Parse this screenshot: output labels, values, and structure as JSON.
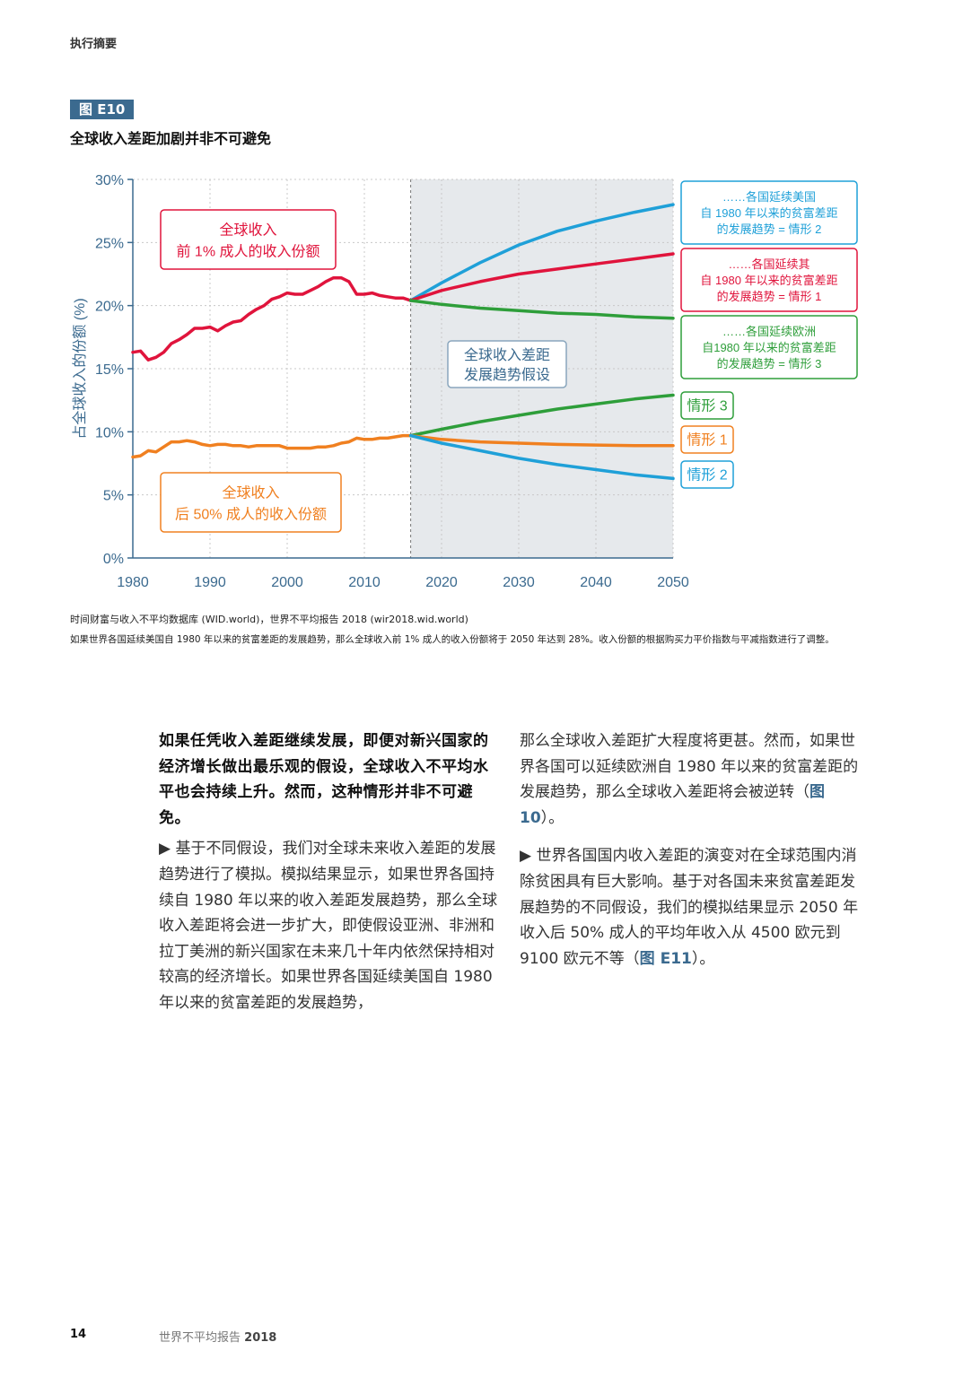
{
  "header": {
    "section": "执行摘要"
  },
  "figure": {
    "tag": "图 E10",
    "title": "全球收入差距加剧并非不可避免",
    "source": "时间财富与收入不平均数据库 (WID.world)，世界不平均报告 2018 (wir2018.wid.world)",
    "note": "如果世界各国延续美国自 1980 年以来的贫富差距的发展趋势，那么全球收入前 1% 成人的收入份额将于 2050 年达到 28%。收入份额的根据购买力平价指数与平减指数进行了调整。"
  },
  "chart_data": {
    "type": "line",
    "ylabel": "占全球收入的份额 (%)",
    "xlim": [
      1980,
      2050
    ],
    "ylim": [
      0,
      30
    ],
    "x_ticks": [
      "1980",
      "1990",
      "2000",
      "2010",
      "2020",
      "2030",
      "2040",
      "2050"
    ],
    "y_ticks": [
      "0%",
      "5%",
      "10%",
      "15%",
      "20%",
      "25%",
      "30%"
    ],
    "projection_start": 2016,
    "projection_label": [
      "全球收入差距",
      "发展趋势假设"
    ],
    "colors": {
      "top1": "#e0143c",
      "bottom50": "#f08020",
      "s1": "#e0143c",
      "s2": "#1fa0d8",
      "s3": "#2e9e3a",
      "s1_bottom": "#f08020"
    },
    "series": [
      {
        "name": "全球收入前 1% 成人的收入份额（历史）",
        "key": "top1",
        "x": [
          1980,
          1981,
          1982,
          1983,
          1984,
          1985,
          1986,
          1987,
          1988,
          1989,
          1990,
          1991,
          1992,
          1993,
          1994,
          1995,
          1996,
          1997,
          1998,
          1999,
          2000,
          2001,
          2002,
          2003,
          2004,
          2005,
          2006,
          2007,
          2008,
          2009,
          2010,
          2011,
          2012,
          2013,
          2014,
          2015,
          2016
        ],
        "values": [
          16.3,
          16.4,
          15.7,
          15.9,
          16.3,
          17.0,
          17.3,
          17.7,
          18.2,
          18.2,
          18.3,
          18.0,
          18.4,
          18.7,
          18.8,
          19.3,
          19.7,
          20.0,
          20.5,
          20.7,
          21.0,
          20.9,
          20.9,
          21.2,
          21.5,
          21.9,
          22.2,
          22.2,
          21.9,
          20.9,
          20.9,
          21.0,
          20.8,
          20.7,
          20.6,
          20.6,
          20.4
        ]
      },
      {
        "name": "全球收入后 50% 成人的收入份额（历史）",
        "key": "bottom50",
        "x": [
          1980,
          1981,
          1982,
          1983,
          1984,
          1985,
          1986,
          1987,
          1988,
          1989,
          1990,
          1991,
          1992,
          1993,
          1994,
          1995,
          1996,
          1997,
          1998,
          1999,
          2000,
          2001,
          2002,
          2003,
          2004,
          2005,
          2006,
          2007,
          2008,
          2009,
          2010,
          2011,
          2012,
          2013,
          2014,
          2015,
          2016
        ],
        "values": [
          8.0,
          8.1,
          8.5,
          8.4,
          8.8,
          9.2,
          9.2,
          9.3,
          9.2,
          9.0,
          8.9,
          9.0,
          9.0,
          8.9,
          8.9,
          8.8,
          8.9,
          8.9,
          8.9,
          8.9,
          8.7,
          8.7,
          8.7,
          8.7,
          8.8,
          8.8,
          8.9,
          9.1,
          9.2,
          9.5,
          9.4,
          9.4,
          9.5,
          9.5,
          9.6,
          9.7,
          9.7
        ]
      },
      {
        "name": "情形 2（前 1%）",
        "key": "s2",
        "x": [
          2016,
          2020,
          2025,
          2030,
          2035,
          2040,
          2045,
          2050
        ],
        "values": [
          20.4,
          21.8,
          23.4,
          24.8,
          25.9,
          26.7,
          27.4,
          28.0
        ]
      },
      {
        "name": "情形 1（前 1%）",
        "key": "s1",
        "x": [
          2016,
          2020,
          2025,
          2030,
          2035,
          2040,
          2045,
          2050
        ],
        "values": [
          20.4,
          21.2,
          21.9,
          22.5,
          22.9,
          23.3,
          23.7,
          24.1
        ]
      },
      {
        "name": "情形 3（前 1%）",
        "key": "s3",
        "x": [
          2016,
          2020,
          2025,
          2030,
          2035,
          2040,
          2045,
          2050
        ],
        "values": [
          20.4,
          20.1,
          19.8,
          19.6,
          19.4,
          19.3,
          19.1,
          19.0
        ]
      },
      {
        "name": "情形 3（后 50%）",
        "key": "s3",
        "x": [
          2016,
          2020,
          2025,
          2030,
          2035,
          2040,
          2045,
          2050
        ],
        "values": [
          9.7,
          10.2,
          10.8,
          11.3,
          11.8,
          12.2,
          12.6,
          12.9
        ]
      },
      {
        "name": "情形 1（后 50%）",
        "key": "s1_bottom",
        "x": [
          2016,
          2020,
          2025,
          2030,
          2035,
          2040,
          2045,
          2050
        ],
        "values": [
          9.7,
          9.4,
          9.2,
          9.1,
          9.0,
          8.95,
          8.9,
          8.9
        ]
      },
      {
        "name": "情形 2（后 50%）",
        "key": "s2",
        "x": [
          2016,
          2020,
          2025,
          2030,
          2035,
          2040,
          2045,
          2050
        ],
        "values": [
          9.7,
          9.1,
          8.5,
          7.9,
          7.4,
          7.0,
          6.6,
          6.3
        ]
      }
    ],
    "annotations": {
      "top1_box": [
        "全球收入",
        "前 1% 成人的收入份额"
      ],
      "bottom50_box": [
        "全球收入",
        "后 50% 成人的收入份额"
      ],
      "s2_box": [
        "……各国延续美国",
        "自 1980 年以来的贫富差距",
        "的发展趋势 = 情形 2"
      ],
      "s1_box": [
        "……各国延续其",
        "自 1980 年以来的贫富差距",
        "的发展趋势 = 情形 1"
      ],
      "s3_box": [
        "……各国延续欧洲",
        "自1980 年以来的贫富差距",
        "的发展趋势 = 情形 3"
      ],
      "bottom_labels": [
        "情形 3",
        "情形 1",
        "情形 2"
      ]
    }
  },
  "body": {
    "lead": "如果任凭收入差距继续发展，即便对新兴国家的经济增长做出最乐观的假设，全球收入不平均水平也会持续上升。然而，这种情形并非不可避免。",
    "para1": "▶ 基于不同假设，我们对全球未来收入差距的发展趋势进行了模拟。模拟结果显示，如果世界各国持续自 1980 年以来的收入差距发展趋势，那么全球收入差距将会进一步扩大，即使假设亚洲、非洲和拉丁美洲的新兴国家在未来几十年内依然保持相对较高的经济增长。如果世界各国延续美国自 1980 年以来的贫富差距的发展趋势，",
    "para2_a": "那么全球收入差距扩大程度将更甚。然而，如果世界各国可以延续欧洲自 1980 年以来的贫富差距的发展趋势，那么全球收入差距将会被逆转（",
    "para2_ref": "图 10",
    "para2_b": "）。",
    "para3_a": "▶ 世界各国国内收入差距的演变对在全球范围内消除贫困具有巨大影响。基于对各国未来贫富差距发展趋势的不同假设，我们的模拟结果显示 2050 年收入后 50% 成人的平均年收入从 4500 欧元到 9100 欧元不等（",
    "para3_ref": "图 E11",
    "para3_b": "）。"
  },
  "footer": {
    "page": "14",
    "title": "世界不平均报告",
    "year": "2018"
  }
}
